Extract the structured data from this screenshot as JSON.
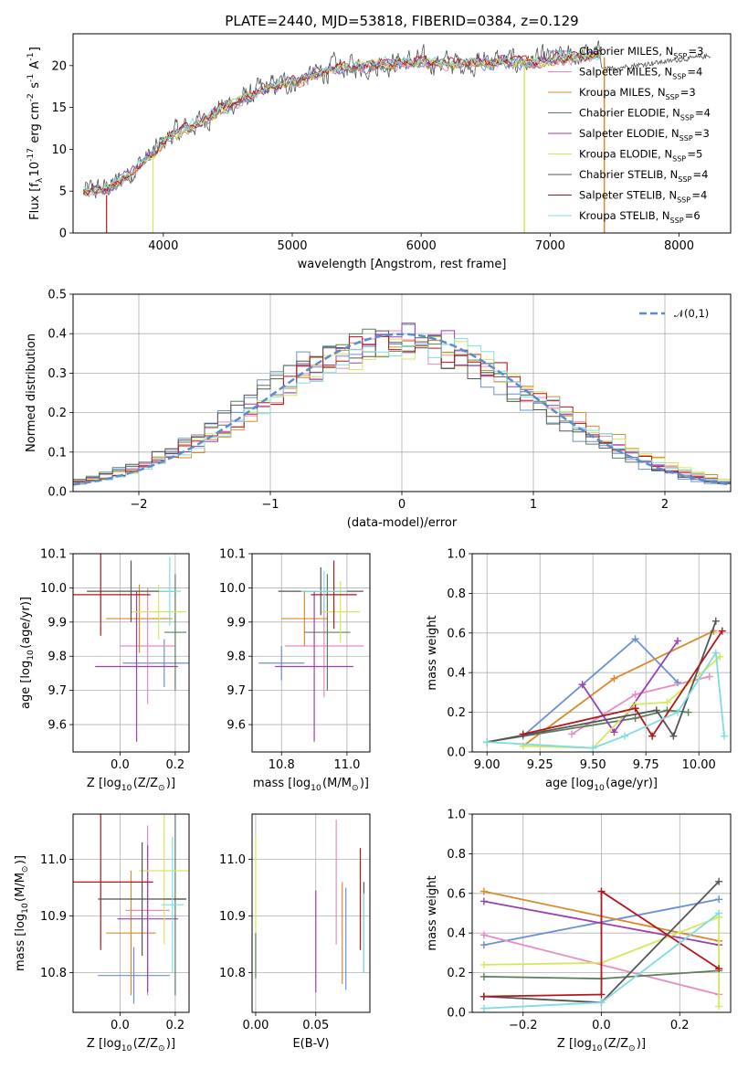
{
  "figure_title": "PLATE=2440, MJD=53818, FIBERID=0384, z=0.129",
  "chart_data": [
    {
      "id": "spectrum",
      "type": "line",
      "title": "PLATE=2440, MJD=53818, FIBERID=0384, z=0.129",
      "xlabel": "wavelength [Angstrom, rest frame]",
      "ylabel": "Flux [f$_\\lambda$10$^{-17}$ erg cm$^{-2}$ s$^{-1}$ A$^{-1}$]",
      "xlim": [
        3300,
        8400
      ],
      "ylim": [
        0,
        23.8
      ],
      "xticks": [
        4000,
        5000,
        6000,
        7000,
        8000
      ],
      "yticks": [
        0,
        5,
        10,
        15,
        20
      ],
      "grid": false,
      "legend_position": "right",
      "continuum_points": {
        "x": [
          3400,
          3550,
          3650,
          3750,
          3850,
          3950,
          4050,
          4150,
          4300,
          4450,
          4600,
          4750,
          4900,
          5000,
          5100,
          5200,
          5300,
          5450,
          5600,
          5800,
          6000,
          6200,
          6400,
          6600,
          6800,
          7000,
          7200,
          7400
        ],
        "y": [
          4.8,
          5.2,
          6.0,
          7.3,
          8.6,
          9.8,
          11.6,
          12.2,
          13.4,
          14.9,
          15.8,
          16.9,
          17.6,
          18.0,
          18.4,
          19.0,
          19.5,
          19.8,
          20.1,
          20.3,
          20.4,
          20.2,
          20.3,
          20.5,
          20.3,
          20.6,
          21.0,
          21.2
        ]
      },
      "series": [
        {
          "name": "Chabrier MILES, N$_{SSP}$=3",
          "color": "#6b8fd6"
        },
        {
          "name": "Salpeter MILES, N$_{SSP}$=4",
          "color": "#e88bc4"
        },
        {
          "name": "Kroupa MILES, N$_{SSP}$=3",
          "color": "#d98a2b"
        },
        {
          "name": "Chabrier ELODIE, N$_{SSP}$=4",
          "color": "#5b7f5b"
        },
        {
          "name": "Salpeter ELODIE, N$_{SSP}$=3",
          "color": "#9b3fb5"
        },
        {
          "name": "Kroupa ELODIE, N$_{SSP}$=5",
          "color": "#d6e85a"
        },
        {
          "name": "Chabrier STELIB, N$_{SSP}$=4",
          "color": "#555555"
        },
        {
          "name": "Salpeter STELIB, N$_{SSP}$=4",
          "color": "#b3171b"
        },
        {
          "name": "Kroupa STELIB, N$_{SSP}$=6",
          "color": "#7fdde0"
        }
      ]
    },
    {
      "id": "residuals",
      "type": "line",
      "xlabel": "(data-model)/error",
      "ylabel": "Normed distribution",
      "xlim": [
        -2.5,
        2.5
      ],
      "ylim": [
        0,
        0.5
      ],
      "xticks": [
        -2,
        -1,
        0,
        1,
        2
      ],
      "yticks": [
        0.0,
        0.1,
        0.2,
        0.3,
        0.4,
        0.5
      ],
      "grid": true,
      "legend_position": "top-right",
      "legend_label": "$\\mathcal{N}(0,1)$",
      "gaussian_color": "#5b8bd0",
      "bin_width": 0.1
    },
    {
      "id": "age_vs_z",
      "type": "scatter",
      "xlabel": "Z [log$_{10}$(Z/Z$_\\odot$)]",
      "ylabel": "age  [log$_{10}$(age/yr)]",
      "xlim": [
        -0.17,
        0.25
      ],
      "ylim": [
        9.52,
        10.1
      ],
      "xticks": [
        0.0,
        0.2
      ],
      "yticks": [
        9.6,
        9.7,
        9.8,
        9.9,
        10.0,
        10.1
      ],
      "grid": true,
      "points": [
        {
          "x": 0.16,
          "xerr": 0.15,
          "y": 9.78,
          "yerr": 0.07,
          "color": "#6b8fd6"
        },
        {
          "x": 0.1,
          "xerr": 0.1,
          "y": 9.83,
          "yerr": 0.17,
          "color": "#e88bc4"
        },
        {
          "x": 0.07,
          "xerr": 0.12,
          "y": 9.91,
          "yerr": 0.1,
          "color": "#d98a2b"
        },
        {
          "x": 0.2,
          "xerr": 0.04,
          "y": 9.87,
          "yerr": 0.17,
          "color": "#5b7f5b"
        },
        {
          "x": 0.06,
          "xerr": 0.15,
          "y": 9.77,
          "yerr": 0.22,
          "color": "#9b3fb5"
        },
        {
          "x": 0.14,
          "xerr": 0.1,
          "y": 9.93,
          "yerr": 0.08,
          "color": "#d6e85a"
        },
        {
          "x": 0.04,
          "xerr": 0.16,
          "y": 9.99,
          "yerr": 0.09,
          "color": "#555555"
        },
        {
          "x": -0.07,
          "xerr": 0.18,
          "y": 9.98,
          "yerr": 0.12,
          "color": "#b3171b"
        },
        {
          "x": 0.18,
          "xerr": 0.04,
          "y": 9.99,
          "yerr": 0.1,
          "color": "#7fdde0"
        }
      ]
    },
    {
      "id": "age_vs_mass",
      "type": "scatter",
      "xlabel": "mass [log$_{10}$(M/M$_\\odot$)]",
      "ylabel": "",
      "xlim": [
        10.71,
        11.07
      ],
      "ylim": [
        9.52,
        10.1
      ],
      "xticks": [
        10.8,
        11.0
      ],
      "yticks": [
        9.6,
        9.7,
        9.8,
        9.9,
        10.0,
        10.1
      ],
      "grid": true,
      "points": [
        {
          "x": 10.8,
          "xerr": 0.07,
          "y": 9.78,
          "yerr": 0.05,
          "color": "#6b8fd6"
        },
        {
          "x": 10.93,
          "xerr": 0.12,
          "y": 9.83,
          "yerr": 0.15,
          "color": "#e88bc4"
        },
        {
          "x": 10.87,
          "xerr": 0.07,
          "y": 9.91,
          "yerr": 0.08,
          "color": "#d98a2b"
        },
        {
          "x": 10.94,
          "xerr": 0.07,
          "y": 9.87,
          "yerr": 0.17,
          "color": "#5b7f5b"
        },
        {
          "x": 10.9,
          "xerr": 0.12,
          "y": 9.77,
          "yerr": 0.22,
          "color": "#9b3fb5"
        },
        {
          "x": 10.98,
          "xerr": 0.06,
          "y": 9.93,
          "yerr": 0.09,
          "color": "#d6e85a"
        },
        {
          "x": 10.92,
          "xerr": 0.13,
          "y": 9.99,
          "yerr": 0.07,
          "color": "#555555"
        },
        {
          "x": 10.96,
          "xerr": 0.07,
          "y": 9.98,
          "yerr": 0.1,
          "color": "#b3171b"
        },
        {
          "x": 10.93,
          "xerr": 0.07,
          "y": 9.99,
          "yerr": 0.06,
          "color": "#7fdde0"
        }
      ]
    },
    {
      "id": "weight_vs_age",
      "type": "line",
      "xlabel": "age  [log$_{10}$(age/yr)]",
      "ylabel": "mass weight",
      "xlim": [
        8.93,
        10.15
      ],
      "ylim": [
        0,
        1
      ],
      "xticks": [
        9.0,
        9.25,
        9.5,
        9.75,
        10.0
      ],
      "yticks": [
        0.0,
        0.2,
        0.4,
        0.6,
        0.8,
        1.0
      ],
      "grid": true,
      "series": [
        {
          "color": "#6b8fd6",
          "x": [
            9.17,
            9.7,
            9.9
          ],
          "y": [
            0.08,
            0.57,
            0.35
          ]
        },
        {
          "color": "#e88bc4",
          "x": [
            9.4,
            9.7,
            10.05
          ],
          "y": [
            0.09,
            0.29,
            0.38
          ]
        },
        {
          "color": "#d98a2b",
          "x": [
            9.17,
            9.6,
            10.07
          ],
          "y": [
            0.03,
            0.37,
            0.61
          ]
        },
        {
          "color": "#5b7f5b",
          "x": [
            9.0,
            9.7,
            9.85,
            9.95
          ],
          "y": [
            0.05,
            0.17,
            0.21,
            0.2
          ]
        },
        {
          "color": "#9b3fb5",
          "x": [
            9.45,
            9.6,
            9.9
          ],
          "y": [
            0.34,
            0.1,
            0.56
          ]
        },
        {
          "color": "#d6e85a",
          "x": [
            9.17,
            9.5,
            9.7,
            9.85,
            10.1
          ],
          "y": [
            0.03,
            0.02,
            0.24,
            0.25,
            0.48
          ]
        },
        {
          "color": "#555555",
          "x": [
            9.0,
            9.8,
            9.88,
            10.08
          ],
          "y": [
            0.05,
            0.21,
            0.08,
            0.66
          ]
        },
        {
          "color": "#b3171b",
          "x": [
            9.17,
            9.7,
            9.78,
            10.11
          ],
          "y": [
            0.09,
            0.22,
            0.08,
            0.61
          ]
        },
        {
          "color": "#7fdde0",
          "x": [
            9.0,
            9.5,
            9.65,
            9.9,
            10.08,
            10.12
          ],
          "y": [
            0.05,
            0.02,
            0.08,
            0.2,
            0.5,
            0.08
          ]
        }
      ]
    },
    {
      "id": "mass_vs_z",
      "type": "scatter",
      "xlabel": "Z [log$_{10}$(Z/Z$_\\odot$)]",
      "ylabel": "mass [log$_{10}$(M/M$_\\odot$)]",
      "xlim": [
        -0.17,
        0.25
      ],
      "ylim": [
        10.73,
        11.08
      ],
      "xticks": [
        0.0,
        0.2
      ],
      "yticks": [
        10.8,
        10.9,
        11.0
      ],
      "grid": true,
      "points": [
        {
          "x": 0.05,
          "xerr": 0.13,
          "y": 10.795,
          "yerr": 0.05,
          "color": "#6b8fd6"
        },
        {
          "x": 0.1,
          "xerr": 0.08,
          "y": 10.91,
          "yerr": 0.15,
          "color": "#e88bc4"
        },
        {
          "x": 0.04,
          "xerr": 0.09,
          "y": 10.87,
          "yerr": 0.11,
          "color": "#d98a2b"
        },
        {
          "x": 0.2,
          "xerr": 0.04,
          "y": 10.93,
          "yerr": 0.17,
          "color": "#5b7f5b"
        },
        {
          "x": 0.1,
          "xerr": 0.11,
          "y": 10.895,
          "yerr": 0.13,
          "color": "#9b3fb5"
        },
        {
          "x": 0.16,
          "xerr": 0.09,
          "y": 10.98,
          "yerr": 0.13,
          "color": "#d6e85a"
        },
        {
          "x": 0.08,
          "xerr": 0.16,
          "y": 10.93,
          "yerr": 0.1,
          "color": "#555555"
        },
        {
          "x": -0.07,
          "xerr": 0.19,
          "y": 10.96,
          "yerr": 0.12,
          "color": "#b3171b"
        },
        {
          "x": 0.19,
          "xerr": 0.04,
          "y": 10.92,
          "yerr": 0.12,
          "color": "#7fdde0"
        }
      ]
    },
    {
      "id": "mass_vs_ebv",
      "type": "scatter",
      "xlabel": "E(B-V)",
      "ylabel": "",
      "xlim": [
        -0.003,
        0.095
      ],
      "ylim": [
        10.73,
        11.08
      ],
      "xticks": [
        0.0,
        0.05
      ],
      "yticks": [
        10.8,
        10.9,
        11.0
      ],
      "grid": true,
      "points": [
        {
          "x": 0.0,
          "y": 10.92,
          "yerr": 0.12,
          "color": "#d6e85a"
        },
        {
          "x": 0.0,
          "y": 10.83,
          "yerr": 0.04,
          "color": "#5b7f5b"
        },
        {
          "x": 0.05,
          "y": 10.855,
          "yerr": 0.09,
          "color": "#9b3fb5"
        },
        {
          "x": 0.067,
          "y": 10.96,
          "yerr": 0.11,
          "color": "#e88bc4"
        },
        {
          "x": 0.072,
          "y": 10.87,
          "yerr": 0.09,
          "color": "#d98a2b"
        },
        {
          "x": 0.075,
          "y": 10.86,
          "yerr": 0.09,
          "color": "#6b8fd6"
        },
        {
          "x": 0.087,
          "y": 10.93,
          "yerr": 0.09,
          "color": "#b3171b"
        },
        {
          "x": 0.09,
          "y": 10.88,
          "yerr": 0.08,
          "color": "#555555"
        },
        {
          "x": 0.09,
          "y": 10.87,
          "yerr": 0.07,
          "color": "#7fdde0"
        }
      ]
    },
    {
      "id": "weight_vs_z",
      "type": "line",
      "xlabel": "Z [log$_{10}$(Z/Z$_\\odot$)]",
      "ylabel": "mass weight",
      "xlim": [
        -0.33,
        0.33
      ],
      "ylim": [
        0,
        1
      ],
      "xticks": [
        -0.2,
        0.0,
        0.2
      ],
      "yticks": [
        0.0,
        0.2,
        0.4,
        0.6,
        0.8,
        1.0
      ],
      "grid": true,
      "series": [
        {
          "color": "#6b8fd6",
          "x": [
            -0.3,
            0.3
          ],
          "y": [
            0.34,
            0.57
          ]
        },
        {
          "color": "#e88bc4",
          "x": [
            -0.3,
            0.3
          ],
          "y": [
            0.39,
            0.09
          ]
        },
        {
          "color": "#d98a2b",
          "x": [
            -0.3,
            0.3
          ],
          "y": [
            0.61,
            0.36
          ]
        },
        {
          "color": "#5b7f5b",
          "x": [
            -0.3,
            0.0,
            0.3
          ],
          "y": [
            0.18,
            0.17,
            0.21
          ]
        },
        {
          "color": "#9b3fb5",
          "x": [
            -0.3,
            0.3
          ],
          "y": [
            0.56,
            0.34
          ]
        },
        {
          "color": "#d6e85a",
          "x": [
            -0.3,
            0.0,
            0.3,
            0.3
          ],
          "y": [
            0.24,
            0.25,
            0.48,
            0.03
          ]
        },
        {
          "color": "#555555",
          "x": [
            -0.3,
            0.0,
            0.3
          ],
          "y": [
            0.08,
            0.05,
            0.66
          ]
        },
        {
          "color": "#b3171b",
          "x": [
            -0.3,
            0.0,
            0.0,
            0.3
          ],
          "y": [
            0.08,
            0.09,
            0.61,
            0.22
          ]
        },
        {
          "color": "#7fdde0",
          "x": [
            -0.3,
            0.0,
            0.3
          ],
          "y": [
            0.02,
            0.05,
            0.5
          ]
        }
      ]
    }
  ]
}
